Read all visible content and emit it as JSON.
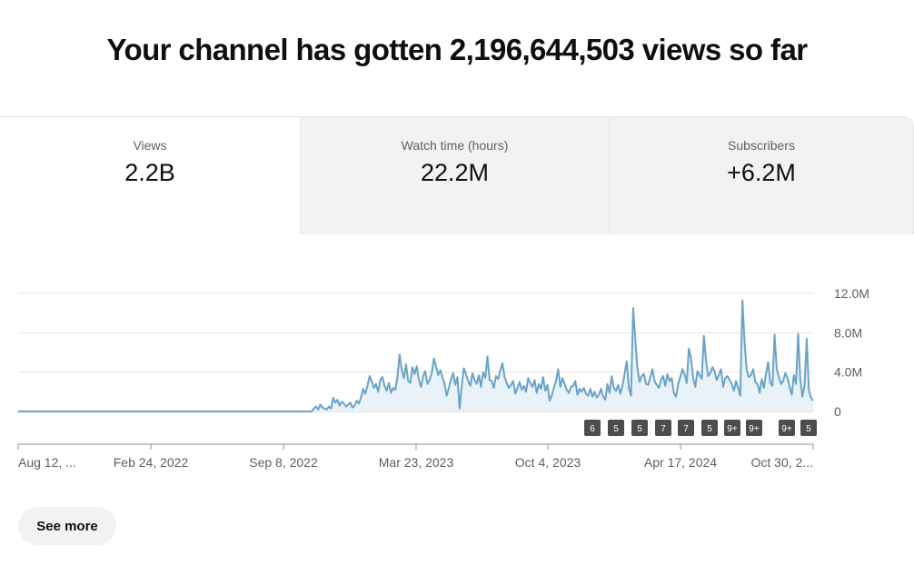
{
  "headline": "Your channel has gotten 2,196,644,503 views so far",
  "tabs": [
    {
      "label": "Views",
      "value": "2.2B"
    },
    {
      "label": "Watch time (hours)",
      "value": "22.2M"
    },
    {
      "label": "Subscribers",
      "value": "+6.2M"
    }
  ],
  "see_more_label": "See more",
  "colors": {
    "line": "#6aa3c8",
    "fill": "#e8f2f8",
    "badge": "#4d4d4d",
    "grid": "#e5e5e5"
  },
  "chart_data": {
    "type": "area",
    "x_tick_labels": [
      "Aug 12, ...",
      "Feb 24, 2022",
      "Sep 8, 2022",
      "Mar 23, 2023",
      "Oct 4, 2023",
      "Apr 17, 2024",
      "Oct 30, 2..."
    ],
    "y_tick_labels": [
      "12.0M",
      "8.0M",
      "4.0M",
      "0"
    ],
    "y_ticks": [
      12,
      8,
      4,
      0
    ],
    "ylim": [
      0,
      12
    ],
    "y_unit": "millions of views",
    "grid": true,
    "series": [
      {
        "values": [
          0,
          0,
          0,
          0,
          0,
          0,
          0,
          0,
          0,
          0,
          0,
          0,
          0,
          0,
          0,
          0,
          0,
          0,
          0,
          0,
          0,
          0,
          0,
          0,
          0,
          0,
          0,
          0,
          0,
          0,
          0,
          0,
          0,
          0,
          0,
          0,
          0,
          0,
          0,
          0,
          0,
          0,
          0,
          0,
          0,
          0,
          0,
          0,
          0,
          0,
          0,
          0,
          0,
          0,
          0,
          0,
          0,
          0,
          0,
          0,
          0,
          0,
          0,
          0,
          0,
          0,
          0,
          0,
          0,
          0,
          0,
          0,
          0,
          0,
          0,
          0,
          0,
          0,
          0,
          0,
          0,
          0,
          0,
          0,
          0,
          0,
          0,
          0,
          0,
          0,
          0,
          0,
          0,
          0,
          0,
          0,
          0,
          0,
          0,
          0,
          0,
          0,
          0,
          0,
          0,
          0,
          0,
          0,
          0,
          0,
          0,
          0,
          0,
          0,
          0,
          0,
          0,
          0,
          0,
          0,
          0,
          0,
          0,
          0,
          0,
          0,
          0,
          0,
          0,
          0,
          0,
          0,
          0,
          0,
          0,
          0,
          0,
          0,
          0.3,
          0.5,
          0.2,
          0.7,
          0.4,
          0.3,
          0.2,
          0.5,
          0.3,
          1.4,
          0.9,
          1.2,
          0.6,
          1.0,
          0.8,
          0.5,
          0.7,
          0.9,
          0.4,
          0.6,
          1.1,
          0.8,
          1.4,
          2.3,
          1.8,
          2.6,
          3.6,
          3.1,
          2.4,
          2.8,
          2.0,
          3.2,
          3.5,
          2.6,
          2.1,
          2.9,
          1.9,
          2.4,
          2.2,
          3.5,
          5.8,
          4.2,
          3.4,
          4.8,
          3.1,
          2.9,
          4.5,
          3.8,
          4.6,
          3.2,
          2.5,
          3.6,
          4.1,
          2.8,
          3.2,
          3.9,
          5.4,
          4.6,
          3.7,
          4.2,
          3.5,
          2.8,
          1.6,
          2.4,
          3.3,
          3.9,
          2.7,
          3.5,
          0.3,
          2.6,
          4.4,
          3.8,
          3.1,
          2.6,
          3.9,
          3.2,
          2.8,
          3.7,
          2.5,
          4.0,
          3.4,
          5.6,
          3.2,
          3.1,
          2.4,
          3.6,
          3.3,
          4.2,
          4.9,
          3.5,
          2.9,
          2.4,
          2.7,
          3.1,
          1.8,
          2.4,
          3.0,
          2.2,
          2.6,
          2.0,
          3.4,
          2.9,
          2.5,
          3.2,
          1.9,
          2.8,
          2.3,
          3.5,
          2.1,
          2.7,
          1.1,
          1.6,
          2.4,
          3.1,
          4.3,
          2.5,
          3.4,
          2.8,
          2.2,
          1.9,
          2.5,
          2.6,
          3.1,
          1.7,
          2.3,
          2.0,
          2.4,
          1.8,
          1.6,
          2.3,
          1.5,
          2.0,
          1.4,
          1.7,
          2.3,
          1.5,
          1.2,
          2.8,
          1.9,
          3.6,
          2.4,
          2.1,
          2.7,
          1.8,
          2.6,
          3.8,
          5.1,
          2.4,
          1.6,
          10.5,
          7.3,
          4.4,
          3.0,
          3.6,
          3.8,
          2.8,
          2.7,
          3.5,
          4.3,
          3.1,
          2.7,
          2.4,
          3.2,
          3.6,
          2.6,
          3.8,
          3.1,
          3.4,
          1.9,
          1.5,
          2.8,
          3.5,
          4.3,
          3.8,
          2.9,
          6.4,
          5.4,
          3.4,
          2.5,
          4.1,
          3.7,
          3.3,
          7.7,
          5.2,
          3.6,
          3.9,
          4.5,
          4.1,
          3.2,
          3.7,
          4.3,
          2.5,
          3.4,
          3.6,
          3.2,
          2.8,
          2.1,
          3.1,
          2.4,
          1.6,
          11.3,
          7.0,
          4.2,
          3.5,
          3.7,
          4.3,
          3.0,
          2.8,
          1.9,
          3.3,
          2.4,
          3.8,
          5.0,
          2.9,
          2.6,
          7.8,
          4.3,
          3.5,
          2.8,
          3.1,
          3.9,
          3.4,
          2.5,
          1.7,
          3.7,
          2.8,
          7.9,
          3.3,
          1.5,
          2.7,
          7.4,
          2.2,
          1.4,
          1.1
        ]
      }
    ],
    "badges": [
      "6",
      "5",
      "5",
      "7",
      "7",
      "5",
      "9+",
      "9+",
      "9+",
      "5"
    ]
  }
}
